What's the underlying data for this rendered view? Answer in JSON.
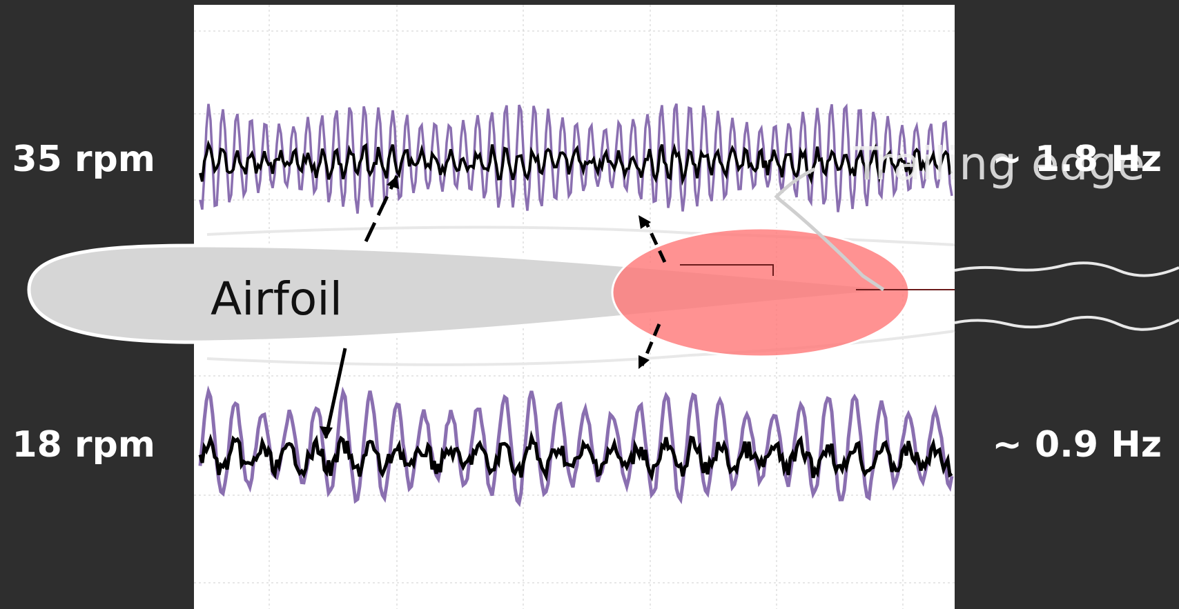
{
  "labels": {
    "top_speed": "35 rpm",
    "bottom_speed": "18 rpm",
    "top_frequency": "~ 1.8 Hz",
    "bottom_frequency": "~ 0.9 Hz",
    "airfoil": "Airfoil",
    "trailing_edge": "Trailing edge"
  }
}
